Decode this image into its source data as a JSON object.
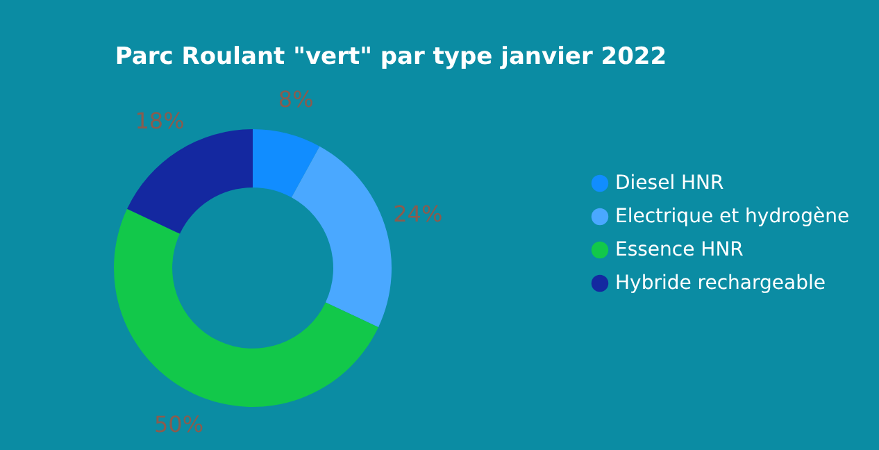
{
  "chart_data": {
    "type": "donut",
    "title": "Parc Roulant \"vert\" par type janvier 2022",
    "categories": [
      "Diesel HNR",
      "Electrique et hydrogène",
      "Essence HNR",
      "Hybride rechargeable"
    ],
    "values": [
      8,
      24,
      50,
      18
    ],
    "colors": [
      "#118dff",
      "#4aa8ff",
      "#12c84a",
      "#1428a0"
    ],
    "value_labels": [
      "8%",
      "24%",
      "50%",
      "18%"
    ],
    "legend": "right"
  }
}
